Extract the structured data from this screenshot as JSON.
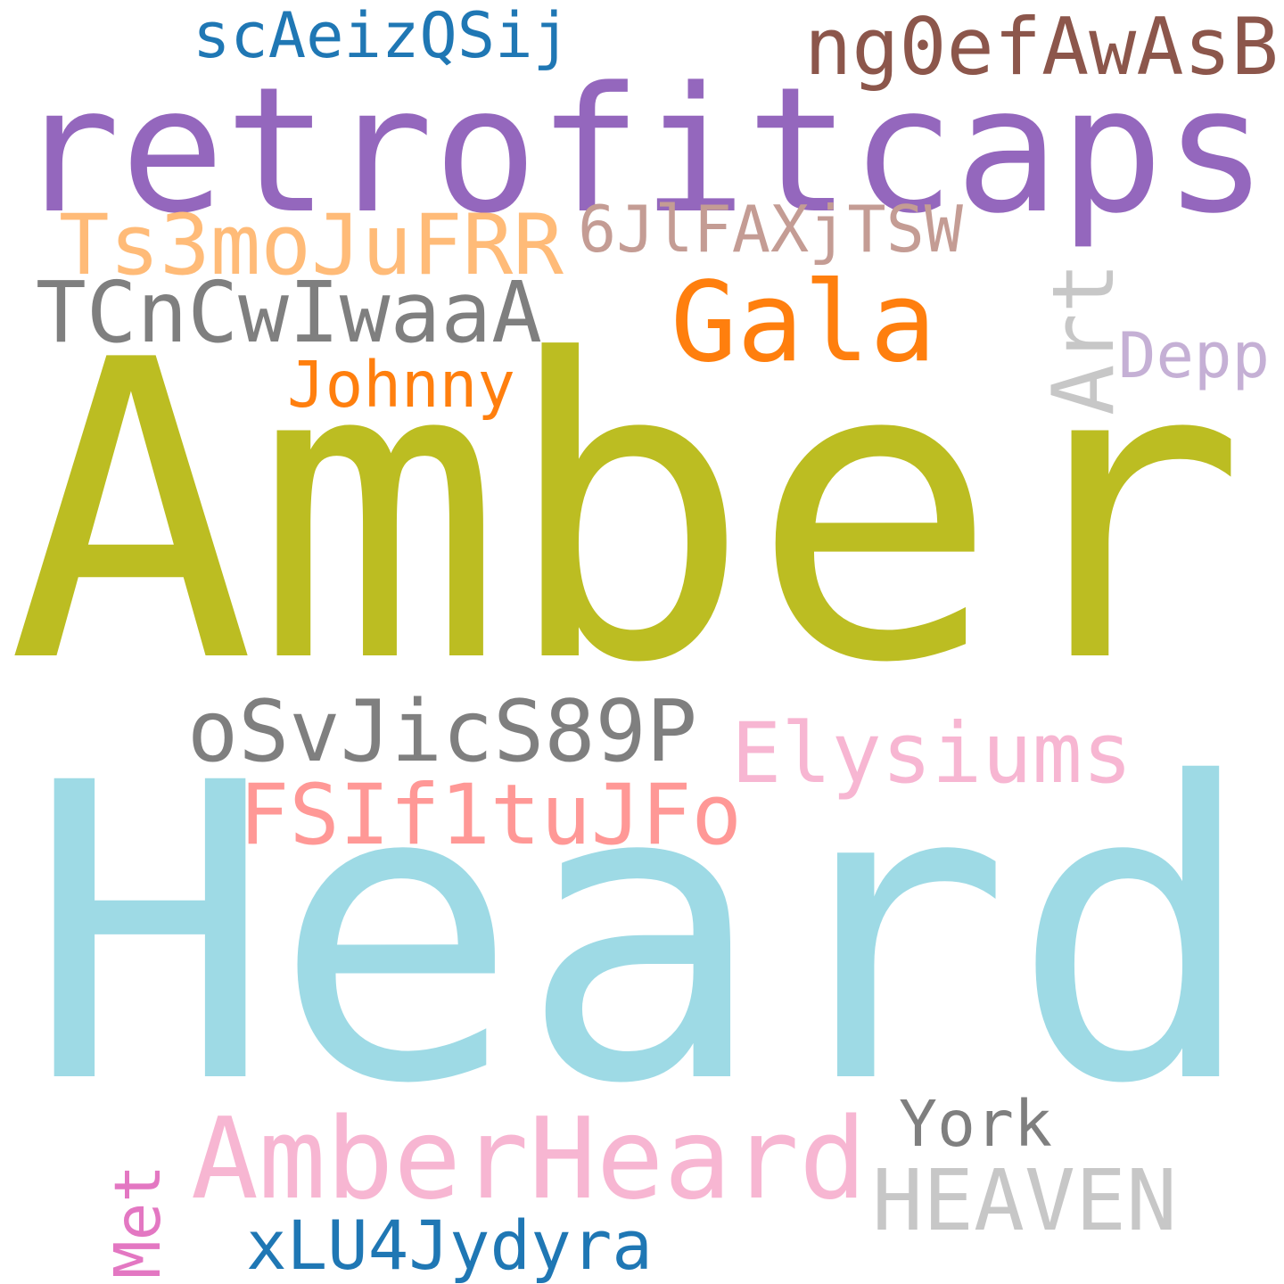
{
  "words": [
    {
      "key": "amber",
      "text": "Amber",
      "color": "#bcbd22"
    },
    {
      "key": "heard",
      "text": "Heard",
      "color": "#9edae5"
    },
    {
      "key": "retrofitcaps",
      "text": "retrofitcaps",
      "color": "#9467bd"
    },
    {
      "key": "ngoefawasb",
      "text": "ng0efAwAsB",
      "color": "#8c564b"
    },
    {
      "key": "scaeizqsij",
      "text": "scAeizQSij",
      "color": "#1f77b4"
    },
    {
      "key": "ts3mojufrr",
      "text": "Ts3moJuFRR",
      "color": "#ffbb78"
    },
    {
      "key": "6jlfaxjtsw",
      "text": "6JlFAXjTSW",
      "color": "#c49c94"
    },
    {
      "key": "tcncwiwaaa",
      "text": "TCnCwIwaaA",
      "color": "#7f7f7f"
    },
    {
      "key": "gala",
      "text": "Gala",
      "color": "#ff7f0e"
    },
    {
      "key": "art",
      "text": "Art",
      "color": "#c7c7c7"
    },
    {
      "key": "depp",
      "text": "Depp",
      "color": "#c5b0d5"
    },
    {
      "key": "johnny",
      "text": "Johnny",
      "color": "#ff7f0e"
    },
    {
      "key": "osvjics89p",
      "text": "oSvJicS89P",
      "color": "#7f7f7f"
    },
    {
      "key": "elysiums",
      "text": "Elysiums",
      "color": "#f7b6d2"
    },
    {
      "key": "fsif1tujfo",
      "text": "FSIf1tuJFo",
      "color": "#ff9896"
    },
    {
      "key": "amberheard",
      "text": "AmberHeard",
      "color": "#f7b6d2"
    },
    {
      "key": "york",
      "text": "York",
      "color": "#7f7f7f"
    },
    {
      "key": "heaven",
      "text": "HEAVEN",
      "color": "#c7c7c7"
    },
    {
      "key": "met",
      "text": "Met",
      "color": "#e377c2"
    },
    {
      "key": "xlu4jydyra",
      "text": "xLU4Jydyra",
      "color": "#1f77b4"
    }
  ]
}
